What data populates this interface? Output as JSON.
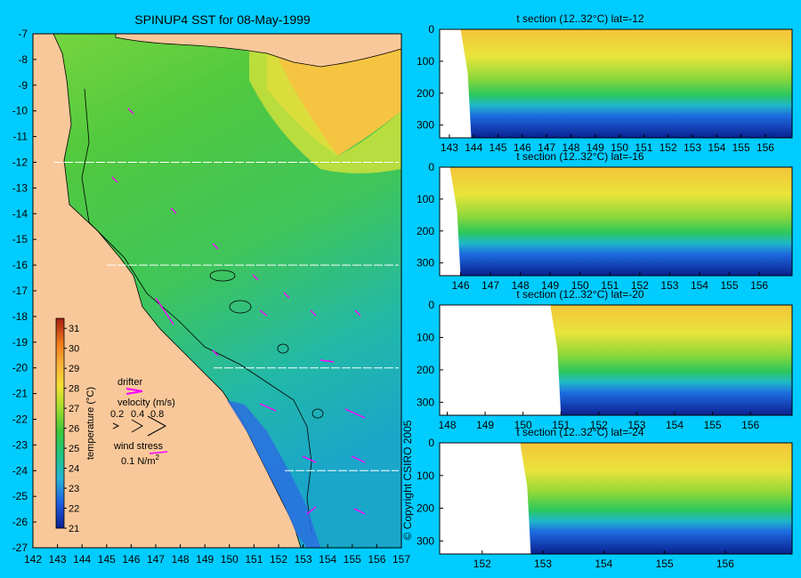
{
  "chart_data": [
    {
      "type": "heatmap",
      "title": "SPINUP4 SST for 08-May-1999",
      "x_ticks": [
        142,
        143,
        144,
        145,
        146,
        147,
        148,
        149,
        150,
        151,
        152,
        153,
        154,
        155,
        156,
        157
      ],
      "y_ticks": [
        -7,
        -8,
        -9,
        -10,
        -11,
        -12,
        -13,
        -14,
        -15,
        -16,
        -17,
        -18,
        -19,
        -20,
        -21,
        -22,
        -23,
        -24,
        -25,
        -26,
        -27
      ],
      "xlim": [
        142,
        157
      ],
      "ylim": [
        -27,
        -7
      ],
      "section_lines": [
        -12,
        -16,
        -20,
        -24
      ],
      "colorbar": {
        "label": "temperature (°C)",
        "ticks": [
          21,
          22,
          23,
          24,
          25,
          26,
          27,
          28,
          29,
          30,
          31
        ],
        "range": [
          21,
          31.5
        ]
      },
      "legend": {
        "drifter_label": "drifter",
        "velocity_label": "velocity (m/s)",
        "velocity_values": [
          "0.2",
          "0.4",
          "0.8"
        ],
        "wind_label": "wind stress",
        "wind_value": "0.1 N/m",
        "wind_unit_sup": "2"
      },
      "colors": {
        "land": "#f9c89a",
        "water_warm": "#4ec84a",
        "water_cool": "#27b39a",
        "drifter": "#ff00ff"
      }
    },
    {
      "type": "heatmap",
      "title": "t section (12..32°C) lat=-12",
      "x_ticks": [
        143,
        144,
        145,
        146,
        147,
        148,
        149,
        150,
        151,
        152,
        153,
        154,
        155,
        156
      ],
      "xlim": [
        142.6,
        157.1
      ],
      "y_ticks": [
        0,
        100,
        200,
        300
      ],
      "ylim": [
        0,
        340
      ],
      "land_edge": 143.9
    },
    {
      "type": "heatmap",
      "title": "t section (12..32°C) lat=-16",
      "x_ticks": [
        146,
        147,
        148,
        149,
        150,
        151,
        152,
        153,
        154,
        155,
        156
      ],
      "xlim": [
        145.3,
        157.1
      ],
      "y_ticks": [
        0,
        100,
        200,
        300
      ],
      "ylim": [
        0,
        340
      ],
      "land_edge": 146.0
    },
    {
      "type": "heatmap",
      "title": "t section (12..32°C) lat=-20",
      "x_ticks": [
        148,
        149,
        150,
        151,
        152,
        153,
        154,
        155,
        156
      ],
      "xlim": [
        147.8,
        157.1
      ],
      "y_ticks": [
        0,
        100,
        200,
        300
      ],
      "ylim": [
        0,
        340
      ],
      "land_edge": 151.0
    },
    {
      "type": "heatmap",
      "title": "t section (12..32°C) lat=-24",
      "x_ticks": [
        152,
        153,
        154,
        155,
        156
      ],
      "xlim": [
        151.3,
        157.1
      ],
      "y_ticks": [
        0,
        100,
        200,
        300
      ],
      "ylim": [
        0,
        340
      ],
      "land_edge": 152.8
    }
  ],
  "copyright": "© Copyright CSIRO 2005"
}
